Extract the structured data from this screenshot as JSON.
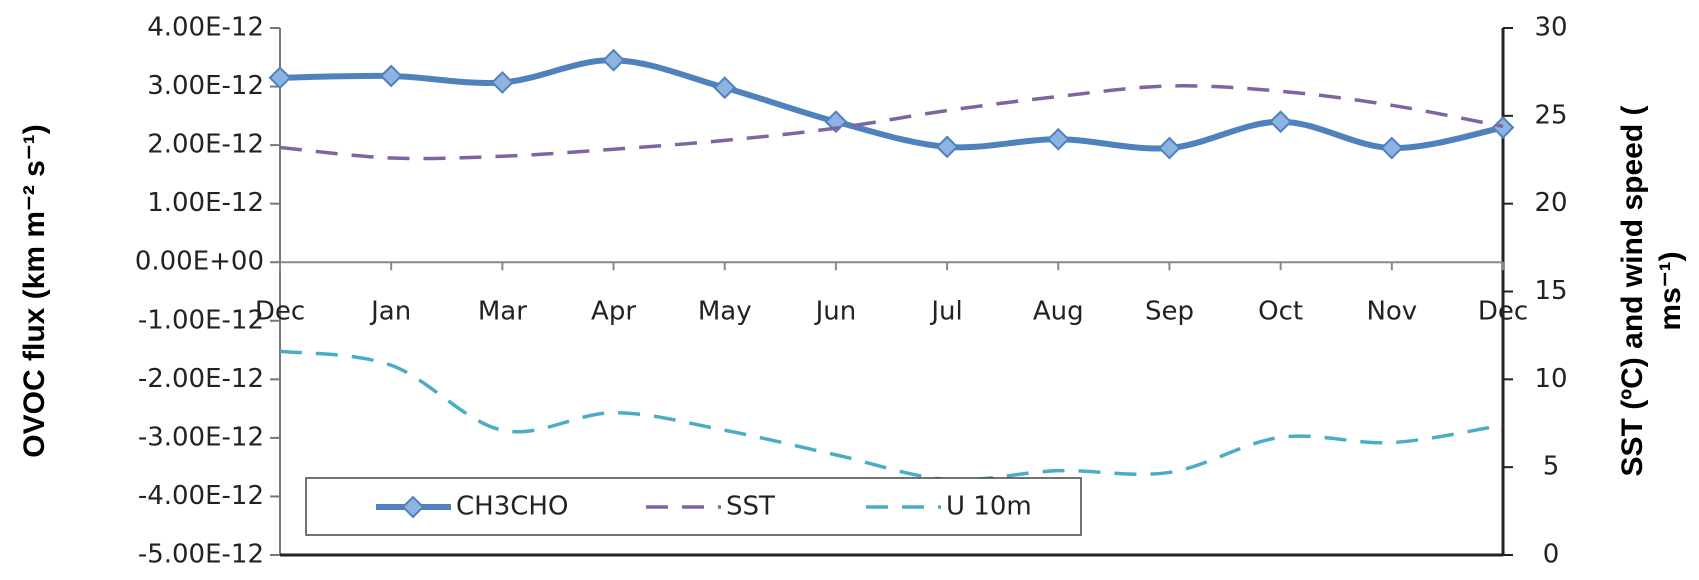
{
  "chart_data": {
    "type": "line",
    "y_label": "OVOC flux (km m⁻² s⁻¹)",
    "y2_label": [
      "SST (ºC) and wind speed (",
      "ms⁻¹)"
    ],
    "categories": [
      "Dec",
      "Jan",
      "Mar",
      "Apr",
      "May",
      "Jun",
      "Jul",
      "Aug",
      "Sep",
      "Oct",
      "Nov",
      "Dec"
    ],
    "series": [
      {
        "name": "CH3CHO",
        "color": "#4f81bd",
        "values": [
          3.15e-12,
          3.18e-12,
          3.07e-12,
          3.45e-12,
          2.98e-12,
          2.4e-12,
          1.97e-12,
          2.1e-12,
          1.95e-12,
          2.4e-12,
          1.95e-12,
          2.3e-12
        ]
      },
      {
        "name": "SST",
        "color": "#8064a2",
        "axis": "y2",
        "values": [
          23.2,
          22.6,
          22.7,
          23.1,
          23.6,
          24.3,
          25.3,
          26.1,
          26.7,
          26.4,
          25.6,
          24.4
        ]
      },
      {
        "name": "U 10m",
        "color": "#4bacc6",
        "axis": "y2",
        "values": [
          11.6,
          10.8,
          7.1,
          8.1,
          7.1,
          5.7,
          4.3,
          4.8,
          4.7,
          6.7,
          6.4,
          7.4
        ]
      }
    ],
    "ylim": [
      -5e-12,
      4e-12
    ],
    "yticks": [
      {
        "value": 4e-12,
        "label": "4.00E-12"
      },
      {
        "value": 3e-12,
        "label": "3.00E-12"
      },
      {
        "value": 2e-12,
        "label": "2.00E-12"
      },
      {
        "value": 1e-12,
        "label": "1.00E-12"
      },
      {
        "value": 0,
        "label": "0.00E+00"
      },
      {
        "value": -1e-12,
        "label": "-1.00E-12"
      },
      {
        "value": -2e-12,
        "label": "-2.00E-12"
      },
      {
        "value": -3e-12,
        "label": "-3.00E-12"
      },
      {
        "value": -4e-12,
        "label": "-4.00E-12"
      },
      {
        "value": -5e-12,
        "label": "-5.00E-12"
      }
    ],
    "y2lim": [
      0,
      30
    ],
    "y2ticks": [
      0,
      5,
      10,
      15,
      20,
      25,
      30
    ],
    "legend": "lower left"
  }
}
